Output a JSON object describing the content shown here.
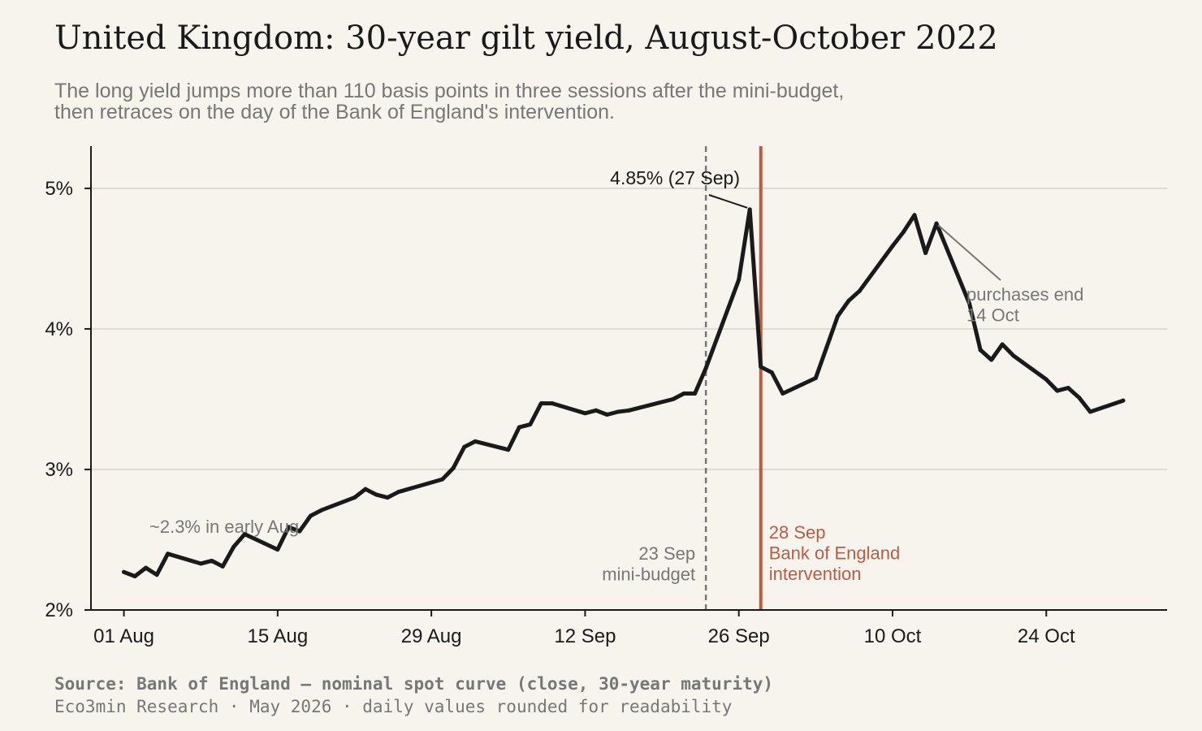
{
  "title": "United Kingdom: 30-year gilt yield, August-October 2022",
  "subtitle_lines": [
    "The long yield jumps more than 110 basis points in three sessions after the mini-budget,",
    "then retraces on the day of the Bank of England's intervention."
  ],
  "footer": {
    "source": "Source: Bank of England — nominal spot curve (close, 30-year maturity)",
    "credit": "Eco3min Research · May 2026 · daily values rounded for readability"
  },
  "colors": {
    "line": "#1a1a1a",
    "intervention": "#b85c45",
    "muted": "#777777",
    "grid": "#d6d3ce",
    "background": "#f7f4ee"
  },
  "chart_data": {
    "type": "line",
    "xlim": [
      "2022-07-29",
      "2022-11-04"
    ],
    "ylim": [
      2,
      5.3
    ],
    "yticks": [
      2,
      3,
      4,
      5
    ],
    "ytick_labels": [
      "2%",
      "3%",
      "4%",
      "5%"
    ],
    "xticks": [
      "2022-08-01",
      "2022-08-15",
      "2022-08-29",
      "2022-09-12",
      "2022-09-26",
      "2022-10-10",
      "2022-10-24"
    ],
    "xtick_labels": [
      "01 Aug",
      "15 Aug",
      "29 Aug",
      "12 Sep",
      "26 Sep",
      "10 Oct",
      "24 Oct"
    ],
    "grid": "horizontal",
    "series": [
      {
        "x": [
          "2022-08-01",
          "2022-08-02",
          "2022-08-03",
          "2022-08-04",
          "2022-08-05",
          "2022-08-08",
          "2022-08-09",
          "2022-08-10",
          "2022-08-11",
          "2022-08-12",
          "2022-08-15",
          "2022-08-16",
          "2022-08-17",
          "2022-08-18",
          "2022-08-19",
          "2022-08-22",
          "2022-08-23",
          "2022-08-24",
          "2022-08-25",
          "2022-08-26",
          "2022-08-30",
          "2022-08-31",
          "2022-09-01",
          "2022-09-02",
          "2022-09-05",
          "2022-09-06",
          "2022-09-07",
          "2022-09-08",
          "2022-09-09",
          "2022-09-12",
          "2022-09-13",
          "2022-09-14",
          "2022-09-15",
          "2022-09-16",
          "2022-09-20",
          "2022-09-21",
          "2022-09-22",
          "2022-09-23",
          "2022-09-26",
          "2022-09-27",
          "2022-09-28",
          "2022-09-29",
          "2022-09-30",
          "2022-10-03",
          "2022-10-04",
          "2022-10-05",
          "2022-10-06",
          "2022-10-07",
          "2022-10-10",
          "2022-10-11",
          "2022-10-12",
          "2022-10-13",
          "2022-10-14",
          "2022-10-17",
          "2022-10-18",
          "2022-10-19",
          "2022-10-20",
          "2022-10-21",
          "2022-10-24",
          "2022-10-25",
          "2022-10-26",
          "2022-10-27",
          "2022-10-28",
          "2022-10-31"
        ],
        "values": [
          2.27,
          2.24,
          2.3,
          2.25,
          2.4,
          2.33,
          2.35,
          2.31,
          2.45,
          2.54,
          2.43,
          2.59,
          2.56,
          2.67,
          2.71,
          2.8,
          2.86,
          2.82,
          2.8,
          2.84,
          2.93,
          3.01,
          3.16,
          3.2,
          3.14,
          3.3,
          3.32,
          3.47,
          3.47,
          3.4,
          3.42,
          3.39,
          3.41,
          3.42,
          3.5,
          3.54,
          3.54,
          3.72,
          4.35,
          4.85,
          3.73,
          3.69,
          3.54,
          3.65,
          3.87,
          4.09,
          4.2,
          4.27,
          4.59,
          4.69,
          4.81,
          4.54,
          4.75,
          4.18,
          3.85,
          3.78,
          3.89,
          3.81,
          3.64,
          3.56,
          3.58,
          3.51,
          3.41,
          3.49
        ]
      }
    ],
    "annotations": [
      {
        "id": "peak",
        "text": "4.85% (27 Sep)",
        "x": "2022-09-27",
        "y": 4.85
      },
      {
        "id": "early",
        "text": "~2.3% in early Aug",
        "x": "2022-08-05",
        "y": 2.3
      },
      {
        "id": "end",
        "lines": [
          "purchases end",
          "14 Oct"
        ],
        "x": "2022-10-14",
        "y": 4.75
      }
    ],
    "events": [
      {
        "id": "mini-budget",
        "x": "2022-09-23",
        "style": "dashed",
        "lines": [
          "23 Sep",
          "mini-budget"
        ]
      },
      {
        "id": "boe",
        "x": "2022-09-28",
        "style": "solid",
        "lines": [
          "28 Sep",
          "Bank of England",
          "intervention"
        ]
      }
    ]
  }
}
